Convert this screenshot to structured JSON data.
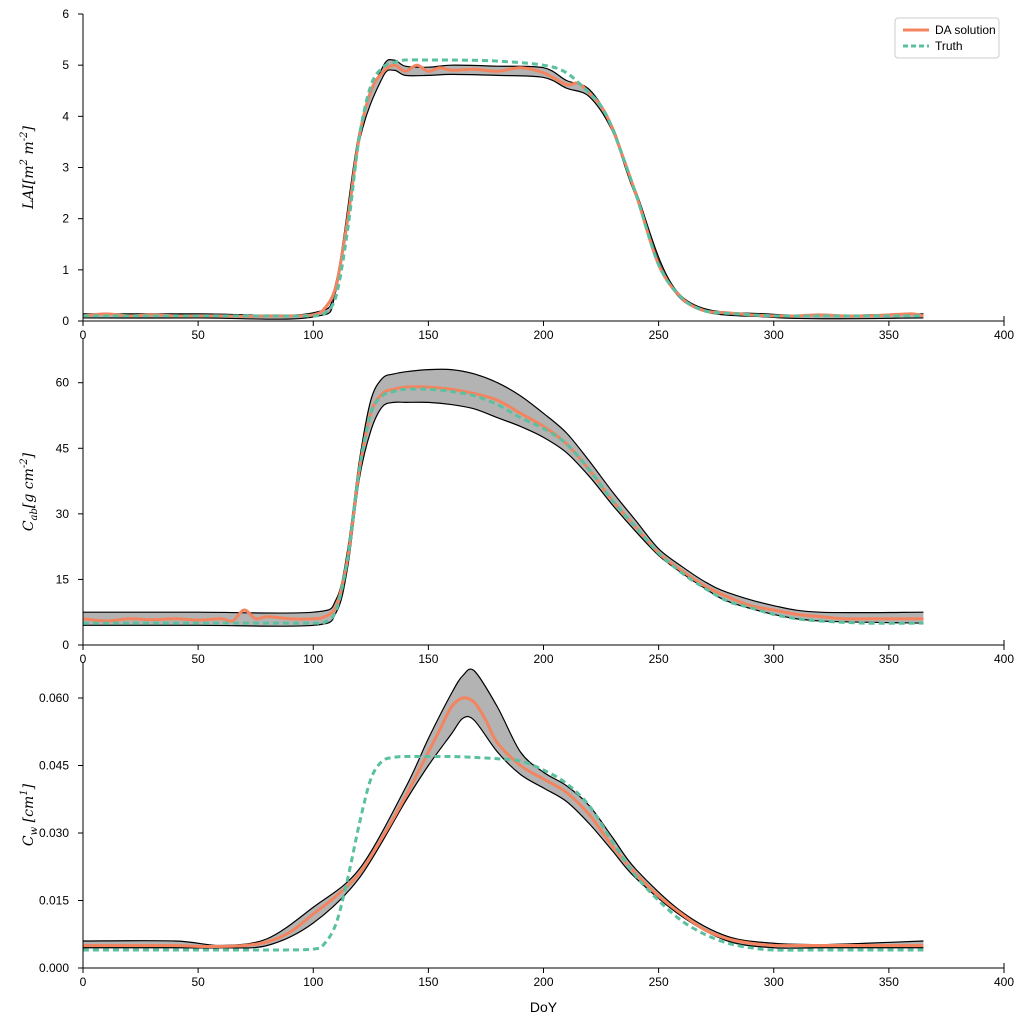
{
  "legend": {
    "items": [
      {
        "label": "DA solution",
        "color": "#F4845F",
        "style": "solid"
      },
      {
        "label": "Truth",
        "color": "#5BC0A0",
        "style": "dashed"
      }
    ],
    "placement": "top-right"
  },
  "chart_data": [
    {
      "type": "line",
      "ylabel": "LAI[m^2 m^-2]",
      "xlabel": "",
      "xlim": [
        0,
        400
      ],
      "ylim": [
        0,
        6
      ],
      "xticks": [
        0,
        50,
        100,
        150,
        200,
        250,
        300,
        350,
        400
      ],
      "yticks": [
        "0",
        "1",
        "2",
        "3",
        "4",
        "5",
        "6"
      ],
      "grid": false,
      "series": [
        {
          "name": "DA solution",
          "x": [
            0,
            10,
            20,
            30,
            40,
            50,
            60,
            70,
            80,
            90,
            100,
            105,
            110,
            115,
            120,
            125,
            130,
            135,
            140,
            145,
            150,
            155,
            160,
            170,
            180,
            190,
            200,
            210,
            215,
            220,
            225,
            230,
            240,
            250,
            260,
            270,
            280,
            290,
            300,
            310,
            320,
            330,
            340,
            350,
            360,
            365
          ],
          "y": [
            0.1,
            0.14,
            0.1,
            0.12,
            0.1,
            0.1,
            0.1,
            0.09,
            0.1,
            0.1,
            0.12,
            0.25,
            0.7,
            2.0,
            3.6,
            4.5,
            4.85,
            5.0,
            4.88,
            5.0,
            4.88,
            4.95,
            4.9,
            4.92,
            4.88,
            4.95,
            4.85,
            4.62,
            4.65,
            4.45,
            4.2,
            3.75,
            2.5,
            1.1,
            0.45,
            0.2,
            0.16,
            0.12,
            0.1,
            0.1,
            0.12,
            0.1,
            0.1,
            0.12,
            0.14,
            0.1
          ]
        },
        {
          "name": "Truth",
          "x": [
            0,
            20,
            40,
            60,
            80,
            100,
            105,
            110,
            115,
            120,
            125,
            130,
            135,
            140,
            150,
            160,
            180,
            200,
            210,
            220,
            225,
            230,
            240,
            250,
            260,
            270,
            280,
            300,
            320,
            340,
            365
          ],
          "y": [
            0.1,
            0.1,
            0.1,
            0.1,
            0.1,
            0.1,
            0.15,
            0.5,
            1.8,
            3.6,
            4.6,
            4.95,
            5.05,
            5.1,
            5.1,
            5.1,
            5.08,
            5.0,
            4.85,
            4.45,
            4.2,
            3.75,
            2.5,
            1.1,
            0.45,
            0.2,
            0.15,
            0.1,
            0.1,
            0.1,
            0.1
          ]
        }
      ],
      "uncertainty_band": {
        "x": [
          0,
          50,
          100,
          110,
          120,
          130,
          135,
          140,
          150,
          160,
          180,
          200,
          210,
          220,
          230,
          240,
          260,
          300,
          365
        ],
        "lower": [
          0.06,
          0.06,
          0.08,
          0.62,
          3.5,
          4.75,
          4.9,
          4.8,
          4.8,
          4.82,
          4.8,
          4.76,
          4.55,
          4.38,
          3.7,
          2.45,
          0.42,
          0.07,
          0.06
        ],
        "upper": [
          0.14,
          0.14,
          0.16,
          0.78,
          3.7,
          4.95,
          5.1,
          4.98,
          4.96,
          5.0,
          4.98,
          4.95,
          4.7,
          4.52,
          3.8,
          2.55,
          0.48,
          0.13,
          0.14
        ]
      }
    },
    {
      "type": "line",
      "ylabel": "C_ab[g cm^-2]",
      "xlabel": "",
      "xlim": [
        0,
        400
      ],
      "ylim": [
        0,
        70
      ],
      "xticks": [
        0,
        50,
        100,
        150,
        200,
        250,
        300,
        350,
        400
      ],
      "yticks": [
        "0",
        "15",
        "30",
        "45",
        "60"
      ],
      "grid": false,
      "series": [
        {
          "name": "DA solution",
          "x": [
            0,
            10,
            20,
            30,
            40,
            50,
            60,
            65,
            70,
            75,
            80,
            90,
            100,
            105,
            110,
            115,
            120,
            125,
            130,
            135,
            140,
            150,
            160,
            170,
            180,
            190,
            200,
            210,
            220,
            230,
            240,
            250,
            260,
            270,
            280,
            290,
            300,
            310,
            320,
            330,
            340,
            350,
            360,
            365
          ],
          "y": [
            6,
            5.5,
            6,
            5.8,
            6,
            5.7,
            6,
            5.5,
            8,
            6,
            6.5,
            6,
            6,
            6.5,
            9,
            20,
            40,
            53,
            57.5,
            58.5,
            59,
            59,
            58.5,
            57.5,
            56,
            53,
            50,
            46,
            40,
            33,
            27,
            21,
            17,
            13.5,
            11,
            9,
            8,
            7,
            6.5,
            6,
            6,
            6,
            6,
            6
          ]
        },
        {
          "name": "Truth",
          "x": [
            0,
            20,
            40,
            60,
            80,
            100,
            105,
            110,
            115,
            120,
            125,
            130,
            135,
            140,
            150,
            160,
            170,
            180,
            190,
            200,
            210,
            220,
            230,
            240,
            250,
            260,
            270,
            280,
            290,
            300,
            310,
            320,
            340,
            365
          ],
          "y": [
            5,
            5,
            5,
            5,
            5,
            5,
            5.2,
            8,
            20,
            40,
            53,
            57,
            58,
            58.5,
            58.5,
            58,
            57,
            55,
            52,
            49.5,
            46,
            40,
            33,
            27,
            21,
            16.5,
            13,
            10,
            8.5,
            7,
            6,
            5.5,
            5,
            5
          ]
        }
      ],
      "uncertainty_band": {
        "x": [
          0,
          50,
          100,
          110,
          115,
          120,
          125,
          130,
          135,
          140,
          150,
          160,
          170,
          180,
          190,
          200,
          210,
          220,
          230,
          240,
          250,
          260,
          270,
          280,
          300,
          320,
          365
        ],
        "lower": [
          4.5,
          4.5,
          4.5,
          7.5,
          18,
          38,
          49,
          54.5,
          55.5,
          55.5,
          55.5,
          55,
          54,
          52,
          50,
          47.5,
          44,
          38.5,
          32,
          26,
          20.5,
          16.5,
          13,
          10,
          7,
          5.5,
          5
        ],
        "upper": [
          7.5,
          7.5,
          7.5,
          10.5,
          22,
          42,
          56,
          61,
          62,
          62.5,
          63,
          63,
          62,
          60,
          57,
          53,
          48.5,
          42,
          35,
          28.5,
          22,
          18,
          14.5,
          12,
          9,
          7.5,
          7.5
        ]
      }
    },
    {
      "type": "line",
      "ylabel": "C_w [cm^1]",
      "xlabel": "DoY",
      "xlim": [
        0,
        400
      ],
      "ylim": [
        0,
        0.068
      ],
      "xticks": [
        0,
        50,
        100,
        150,
        200,
        250,
        300,
        350,
        400
      ],
      "yticks": [
        "0.000",
        "0.015",
        "0.030",
        "0.045",
        "0.060"
      ],
      "grid": false,
      "series": [
        {
          "name": "DA solution",
          "x": [
            0,
            20,
            40,
            50,
            60,
            70,
            80,
            90,
            100,
            110,
            120,
            130,
            140,
            150,
            155,
            160,
            165,
            170,
            175,
            180,
            190,
            200,
            210,
            220,
            230,
            240,
            250,
            260,
            270,
            280,
            290,
            300,
            310,
            320,
            340,
            365
          ],
          "y": [
            0.005,
            0.005,
            0.005,
            0.0048,
            0.0048,
            0.005,
            0.0058,
            0.008,
            0.012,
            0.016,
            0.021,
            0.029,
            0.038,
            0.048,
            0.053,
            0.058,
            0.06,
            0.059,
            0.055,
            0.05,
            0.045,
            0.042,
            0.039,
            0.034,
            0.027,
            0.021,
            0.016,
            0.012,
            0.0085,
            0.0065,
            0.0055,
            0.005,
            0.005,
            0.005,
            0.005,
            0.005
          ]
        },
        {
          "name": "Truth",
          "x": [
            0,
            20,
            40,
            60,
            80,
            100,
            105,
            110,
            115,
            120,
            125,
            130,
            135,
            140,
            150,
            160,
            170,
            180,
            190,
            200,
            210,
            220,
            230,
            240,
            250,
            260,
            270,
            280,
            290,
            300,
            320,
            340,
            365
          ],
          "y": [
            0.004,
            0.004,
            0.004,
            0.004,
            0.004,
            0.0042,
            0.0055,
            0.01,
            0.02,
            0.032,
            0.042,
            0.046,
            0.0468,
            0.047,
            0.047,
            0.047,
            0.0468,
            0.0465,
            0.046,
            0.044,
            0.041,
            0.036,
            0.028,
            0.0205,
            0.015,
            0.0105,
            0.0075,
            0.0055,
            0.0045,
            0.004,
            0.004,
            0.004,
            0.004
          ]
        }
      ],
      "uncertainty_band": {
        "x": [
          0,
          40,
          60,
          80,
          100,
          120,
          140,
          150,
          160,
          165,
          170,
          180,
          190,
          200,
          210,
          220,
          230,
          240,
          260,
          280,
          300,
          320,
          340,
          365
        ],
        "lower": [
          0.0045,
          0.0045,
          0.0045,
          0.005,
          0.01,
          0.02,
          0.037,
          0.045,
          0.052,
          0.0555,
          0.055,
          0.048,
          0.043,
          0.04,
          0.037,
          0.032,
          0.026,
          0.02,
          0.0115,
          0.006,
          0.0045,
          0.0045,
          0.0045,
          0.0045
        ],
        "upper": [
          0.006,
          0.006,
          0.005,
          0.0065,
          0.0135,
          0.022,
          0.04,
          0.051,
          0.061,
          0.065,
          0.066,
          0.058,
          0.048,
          0.0435,
          0.0405,
          0.036,
          0.029,
          0.022,
          0.0125,
          0.007,
          0.0055,
          0.0052,
          0.0055,
          0.006
        ]
      }
    }
  ]
}
